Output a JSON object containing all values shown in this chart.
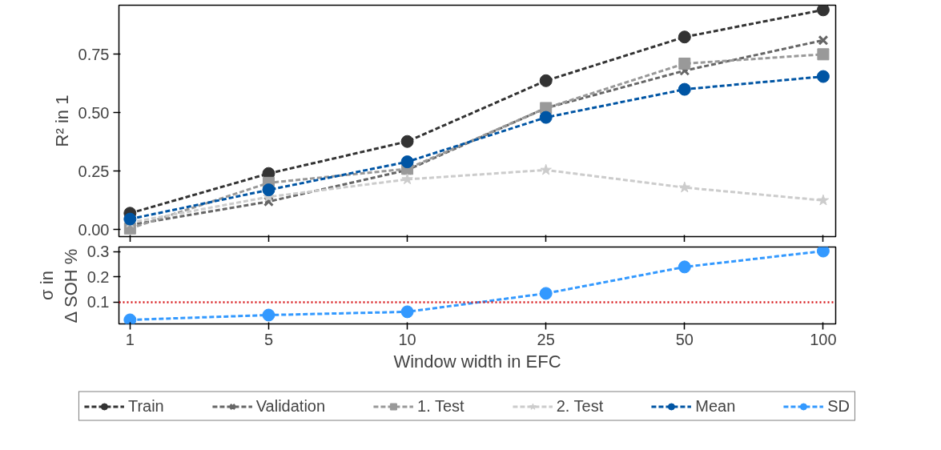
{
  "chart_data": [
    {
      "type": "line",
      "ylabel": "R² in 1",
      "categories": [
        "1",
        "5",
        "10",
        "25",
        "50",
        "100"
      ],
      "ylim": [
        -0.03,
        0.96
      ],
      "yticks": [
        {
          "value": 0,
          "label": "0.00"
        },
        {
          "value": 0.25,
          "label": "0.25"
        },
        {
          "value": 0.5,
          "label": "0.50"
        },
        {
          "value": 0.75,
          "label": "0.75"
        }
      ],
      "tick_labels": "y",
      "grid": false,
      "line_style": "dashed",
      "legend": "bottom",
      "series": [
        {
          "name": "Train",
          "color": "#333333",
          "marker": "circle",
          "values": [
            0.07,
            0.24,
            0.377,
            0.637,
            0.824,
            0.94
          ]
        },
        {
          "name": "Validation",
          "color": "#666666",
          "marker": "cross",
          "values": [
            0.02,
            0.12,
            0.255,
            0.52,
            0.68,
            0.81
          ]
        },
        {
          "name": "1. Test",
          "color": "#999999",
          "marker": "square",
          "values": [
            0.005,
            0.2,
            0.26,
            0.52,
            0.71,
            0.75
          ]
        },
        {
          "name": "2. Test",
          "color": "#cccccc",
          "marker": "star",
          "values": [
            0.03,
            0.14,
            0.215,
            0.255,
            0.18,
            0.125
          ]
        },
        {
          "name": "Mean",
          "color": "#0055a4",
          "marker": "circle",
          "values": [
            0.045,
            0.17,
            0.29,
            0.48,
            0.6,
            0.655
          ]
        }
      ]
    },
    {
      "type": "line",
      "ylabel": "σ in\nΔ SOH %",
      "xlabel": "Window width in EFC",
      "categories": [
        "1",
        "5",
        "10",
        "25",
        "50",
        "100"
      ],
      "ylim": [
        0.014,
        0.319
      ],
      "yticks": [
        0.1,
        0.2,
        0.3
      ],
      "grid": false,
      "line_style": "dashed",
      "legend": "bottom",
      "series": [
        {
          "name": "SD",
          "color": "#3399ff",
          "marker": "circle",
          "values": [
            0.03,
            0.049,
            0.062,
            0.135,
            0.24,
            0.303
          ]
        }
      ],
      "ref_lines": [
        {
          "axis": "y",
          "value": 0.1,
          "color": "#d7191c",
          "line_style": "dotted"
        }
      ]
    }
  ]
}
